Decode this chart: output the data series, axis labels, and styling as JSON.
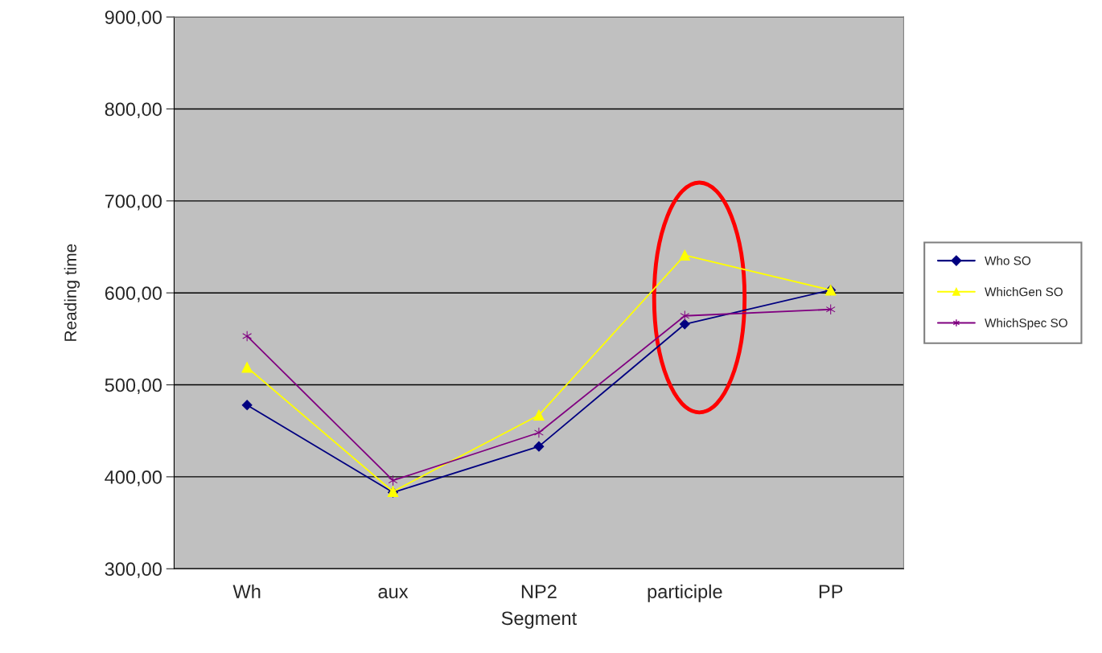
{
  "chart_data": {
    "type": "line",
    "xlabel": "Segment",
    "ylabel": "Reading time",
    "categories": [
      "Wh",
      "aux",
      "NP2",
      "participle",
      "PP"
    ],
    "series": [
      {
        "name": "Who SO",
        "color": "#000080",
        "marker": "diamond",
        "values": [
          478,
          383,
          433,
          566,
          603
        ]
      },
      {
        "name": "WhichGen SO",
        "color": "#ffff00",
        "marker": "triangle",
        "values": [
          519,
          384,
          467,
          641,
          603
        ]
      },
      {
        "name": "WhichSpec SO",
        "color": "#800080",
        "marker": "cross",
        "values": [
          553,
          396,
          448,
          575,
          582
        ]
      }
    ],
    "ylim": [
      300,
      900
    ],
    "yticks": [
      {
        "value": 300,
        "label": "300,00"
      },
      {
        "value": 400,
        "label": "400,00"
      },
      {
        "value": 500,
        "label": "500,00"
      },
      {
        "value": 600,
        "label": "600,00"
      },
      {
        "value": 700,
        "label": "700,00"
      },
      {
        "value": 800,
        "label": "800,00"
      },
      {
        "value": 900,
        "label": "900,00"
      }
    ],
    "grid": "y",
    "legend": "right",
    "line_style": "solid"
  }
}
